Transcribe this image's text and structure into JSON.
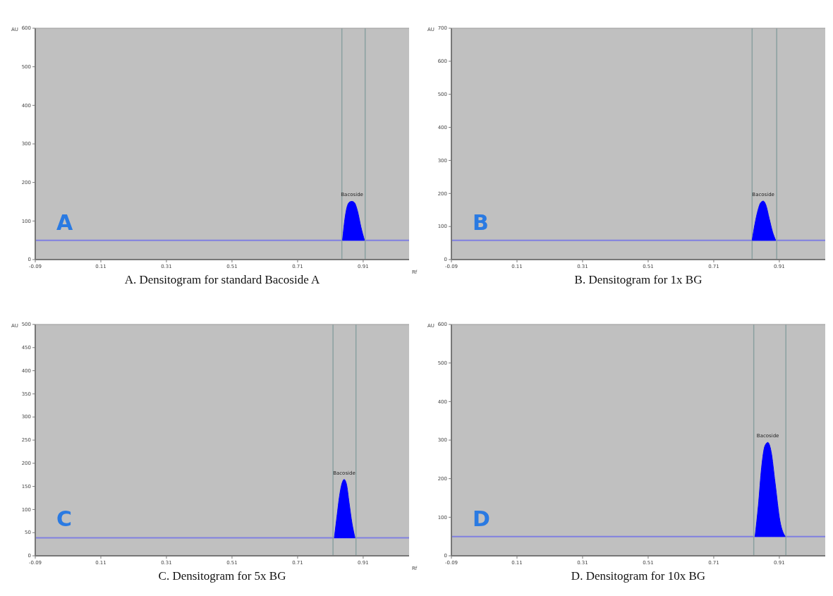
{
  "chart_data": [
    {
      "type": "area",
      "title": "A.  Densitogram  for  standard  Bacoside  A",
      "xlabel": "Rf",
      "ylabel": "AU",
      "xlim": [
        -0.09,
        1.05
      ],
      "xticks": [
        -0.09,
        0.11,
        0.31,
        0.51,
        0.71,
        0.91
      ],
      "ylim": [
        0,
        600
      ],
      "yticks": [
        0,
        100,
        200,
        300,
        400,
        500,
        600
      ],
      "series": [
        {
          "color": "#0000ff",
          "x": [
            0.847,
            0.855,
            0.862,
            0.87,
            0.876,
            0.883,
            0.893,
            0.903,
            0.914
          ],
          "values": [
            50,
            110,
            140,
            150,
            151,
            148,
            125,
            85,
            50
          ]
        }
      ],
      "ref_lines": [
        {
          "axis": "y",
          "value": 50,
          "color": "#8080e0"
        },
        {
          "axis": "x",
          "value": 0.845,
          "color": "#8aa0a0"
        },
        {
          "axis": "x",
          "value": 0.916,
          "color": "#8aa0a0"
        }
      ],
      "annotations": [
        "A",
        {
          "text": "Bacoside",
          "x": 0.876,
          "y": 151
        }
      ]
    },
    {
      "type": "area",
      "title": "B.  Densitogram  for  1x  BG",
      "ylabel": "AU",
      "xlim": [
        -0.09,
        1.05
      ],
      "xticks": [
        -0.09,
        0.11,
        0.31,
        0.51,
        0.71,
        0.91
      ],
      "ylim": [
        0,
        700
      ],
      "yticks": [
        0,
        100,
        200,
        300,
        400,
        500,
        600,
        700
      ],
      "series": [
        {
          "color": "#0000ff",
          "x": [
            0.827,
            0.836,
            0.845,
            0.853,
            0.861,
            0.869,
            0.879,
            0.889,
            0.899
          ],
          "values": [
            58,
            110,
            150,
            172,
            177,
            165,
            125,
            85,
            58
          ]
        }
      ],
      "ref_lines": [
        {
          "axis": "y",
          "value": 58,
          "color": "#8080e0"
        },
        {
          "axis": "x",
          "value": 0.827,
          "color": "#8aa0a0"
        },
        {
          "axis": "x",
          "value": 0.902,
          "color": "#8aa0a0"
        }
      ],
      "annotations": [
        "B",
        {
          "text": "Bacoside",
          "x": 0.861,
          "y": 177
        }
      ]
    },
    {
      "type": "area",
      "title": "C.  Densitogram  for  5x  BG",
      "xlabel": "Rf",
      "ylabel": "AU",
      "xlim": [
        -0.09,
        1.05
      ],
      "xticks": [
        -0.09,
        0.11,
        0.31,
        0.51,
        0.71,
        0.91
      ],
      "ylim": [
        0,
        500
      ],
      "yticks": [
        0,
        50,
        100,
        150,
        200,
        250,
        300,
        350,
        400,
        450,
        500
      ],
      "series": [
        {
          "color": "#0000ff",
          "x": [
            0.822,
            0.83,
            0.838,
            0.846,
            0.852,
            0.859,
            0.867,
            0.876,
            0.885
          ],
          "values": [
            39,
            85,
            130,
            158,
            165,
            155,
            115,
            70,
            39
          ]
        }
      ],
      "ref_lines": [
        {
          "axis": "y",
          "value": 39,
          "color": "#8080e0"
        },
        {
          "axis": "x",
          "value": 0.818,
          "color": "#8aa0a0"
        },
        {
          "axis": "x",
          "value": 0.888,
          "color": "#8aa0a0"
        }
      ],
      "annotations": [
        "C",
        {
          "text": "Bacoside",
          "x": 0.852,
          "y": 165
        }
      ]
    },
    {
      "type": "area",
      "title": "D.  Densitogram  for  10x  BG",
      "ylabel": "AU",
      "xlim": [
        -0.09,
        1.05
      ],
      "xticks": [
        -0.09,
        0.11,
        0.31,
        0.51,
        0.71,
        0.91
      ],
      "ylim": [
        0,
        600
      ],
      "yticks": [
        0,
        100,
        200,
        300,
        400,
        500,
        600
      ],
      "series": [
        {
          "color": "#0000ff",
          "x": [
            0.836,
            0.846,
            0.856,
            0.866,
            0.875,
            0.885,
            0.897,
            0.912,
            0.928
          ],
          "values": [
            50,
            130,
            230,
            285,
            294,
            270,
            190,
            90,
            50
          ]
        }
      ],
      "ref_lines": [
        {
          "axis": "y",
          "value": 50,
          "color": "#8080e0"
        },
        {
          "axis": "x",
          "value": 0.832,
          "color": "#8aa0a0"
        },
        {
          "axis": "x",
          "value": 0.93,
          "color": "#8aa0a0"
        }
      ],
      "annotations": [
        "D",
        {
          "text": "Bacoside",
          "x": 0.875,
          "y": 294
        }
      ]
    }
  ]
}
